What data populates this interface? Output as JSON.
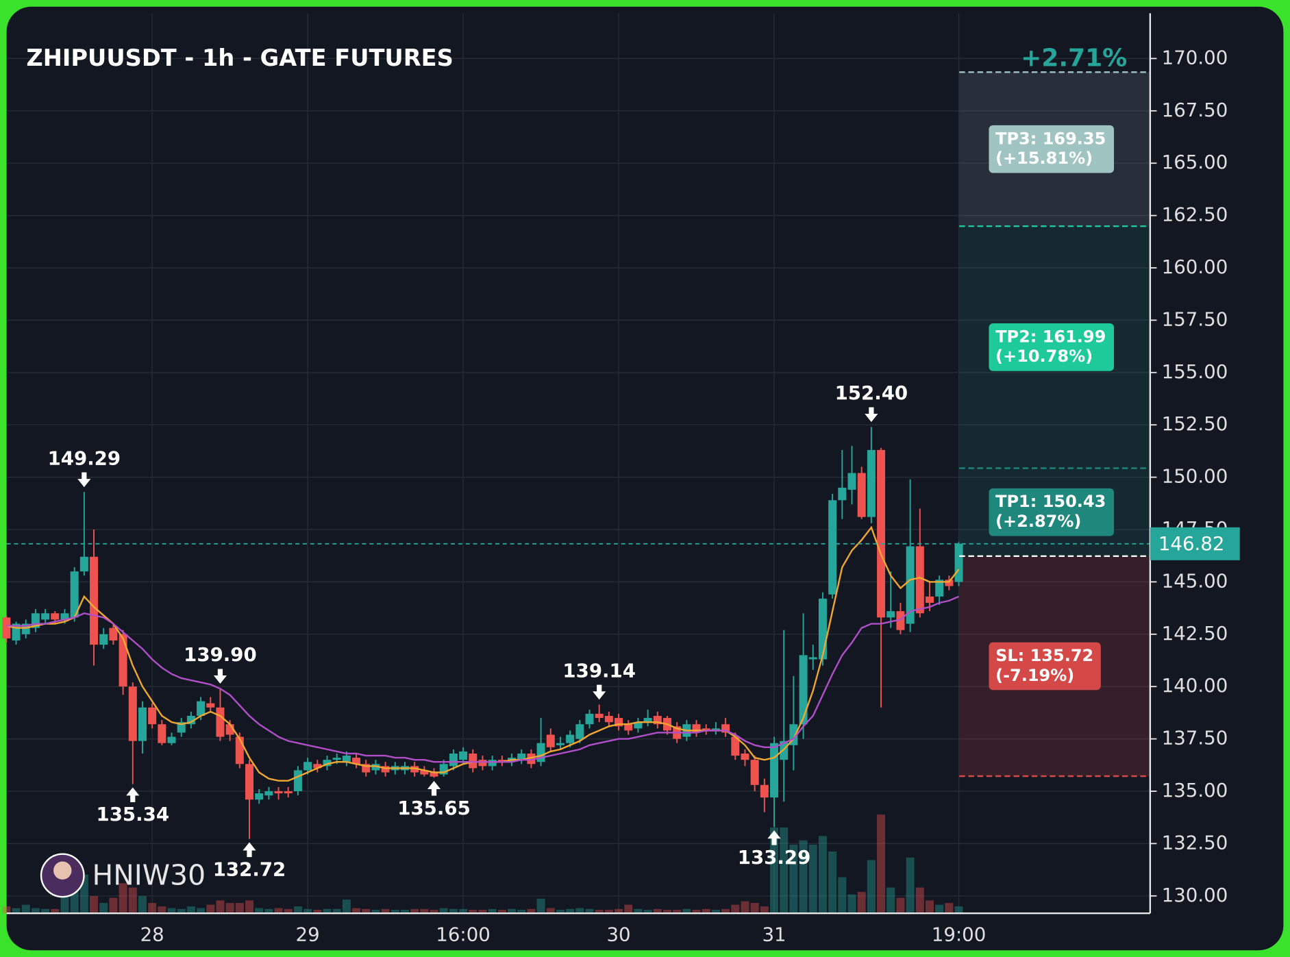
{
  "chart_data": {
    "type": "candlestick",
    "title": "ZHIPUUSDT - 1h - GATE FUTURES",
    "change": "+2.71%",
    "watermark": "HNIW30",
    "categories": [
      null,
      null,
      null,
      null,
      null,
      null,
      null,
      null,
      null,
      null,
      null,
      null,
      null,
      null,
      null,
      "28",
      null,
      null,
      null,
      null,
      null,
      null,
      null,
      null,
      null,
      null,
      null,
      null,
      null,
      null,
      null,
      "29",
      null,
      null,
      null,
      null,
      null,
      null,
      null,
      null,
      null,
      null,
      null,
      null,
      null,
      null,
      null,
      "16:00",
      null,
      null,
      null,
      null,
      null,
      null,
      null,
      null,
      null,
      null,
      null,
      null,
      null,
      null,
      null,
      "30",
      null,
      null,
      null,
      null,
      null,
      null,
      null,
      null,
      null,
      null,
      null,
      null,
      null,
      null,
      null,
      "31",
      null,
      null,
      null,
      null,
      null,
      null,
      null,
      null,
      null,
      null,
      null,
      null,
      null,
      null,
      null,
      null,
      null,
      null,
      "19:00"
    ],
    "open": [
      143.3,
      142.2,
      142.5,
      142.8,
      143.2,
      143.5,
      143.2,
      143.3,
      145.5,
      146.2,
      142.0,
      142.8,
      142.5,
      140.0,
      137.4,
      139.0,
      138.2,
      137.3,
      137.8,
      138.2,
      138.6,
      139.2,
      139.0,
      138.2,
      137.6,
      136.3,
      134.6,
      134.8,
      135.0,
      135.0,
      135.0,
      136.0,
      136.3,
      136.2,
      136.5,
      136.4,
      136.6,
      136.3,
      136.0,
      136.2,
      136.0,
      136.0,
      136.2,
      136.0,
      135.9,
      135.8,
      136.2,
      136.5,
      136.8,
      136.5,
      136.2,
      136.5,
      136.4,
      136.5,
      136.8,
      136.4,
      137.7,
      137.2,
      137.3,
      137.5,
      138.2,
      138.7,
      138.6,
      138.5,
      138.2,
      138.0,
      138.3,
      138.6,
      138.5,
      138.1,
      137.6,
      138.2,
      138.0,
      137.9,
      138.2,
      137.6,
      136.8,
      136.5,
      135.3,
      134.7,
      136.5,
      137.2,
      138.2,
      141.3,
      141.3,
      144.4,
      148.9,
      149.4,
      150.2,
      148.1,
      151.3,
      143.3,
      143.6,
      143.0,
      146.7,
      144.3,
      144.3,
      145.1,
      145.0
    ],
    "high": [
      143.4,
      143.1,
      143.2,
      143.7,
      143.7,
      143.6,
      143.7,
      145.7,
      149.29,
      147.5,
      142.8,
      143.0,
      142.7,
      140.2,
      139.3,
      139.2,
      138.4,
      137.8,
      138.5,
      138.8,
      139.5,
      139.5,
      139.9,
      138.4,
      137.8,
      136.5,
      135.1,
      135.2,
      135.2,
      135.2,
      136.2,
      136.6,
      136.5,
      136.7,
      136.8,
      136.9,
      136.8,
      136.5,
      136.5,
      136.4,
      136.4,
      136.4,
      136.4,
      136.2,
      136.1,
      136.5,
      137.0,
      137.1,
      137.0,
      136.7,
      136.7,
      136.7,
      136.8,
      137.0,
      137.0,
      138.5,
      138.0,
      137.6,
      137.9,
      138.4,
      138.9,
      139.14,
      138.8,
      138.7,
      138.4,
      138.5,
      138.9,
      138.8,
      138.6,
      138.3,
      138.4,
      138.4,
      138.2,
      138.3,
      138.5,
      137.8,
      137.0,
      136.7,
      135.6,
      137.6,
      142.7,
      140.5,
      143.5,
      142.0,
      144.5,
      149.2,
      151.3,
      151.5,
      150.5,
      152.4,
      151.4,
      145.5,
      144.0,
      149.9,
      148.5,
      145.0,
      145.3,
      145.3,
      146.9
    ],
    "low": [
      142.1,
      142.0,
      142.3,
      142.6,
      143.0,
      143.0,
      143.0,
      143.1,
      145.3,
      141.0,
      141.8,
      142.0,
      139.6,
      135.34,
      136.8,
      138.0,
      137.2,
      137.2,
      137.6,
      138.0,
      138.4,
      138.8,
      137.4,
      137.4,
      136.1,
      132.72,
      134.4,
      134.6,
      134.6,
      134.7,
      134.8,
      135.8,
      135.9,
      136.0,
      136.3,
      136.2,
      136.1,
      135.7,
      135.8,
      135.7,
      135.8,
      135.8,
      135.7,
      135.7,
      135.65,
      135.7,
      136.0,
      136.3,
      135.9,
      136.0,
      136.0,
      136.2,
      136.2,
      136.3,
      136.1,
      136.2,
      136.9,
      137.0,
      137.1,
      137.3,
      138.0,
      138.3,
      138.1,
      137.9,
      137.7,
      137.8,
      138.1,
      138.0,
      137.7,
      137.3,
      137.4,
      137.6,
      137.7,
      137.7,
      137.6,
      136.5,
      136.2,
      135.0,
      134.0,
      133.29,
      134.5,
      136.0,
      137.5,
      140.8,
      141.0,
      144.2,
      148.0,
      148.7,
      148.0,
      147.8,
      139.0,
      142.8,
      142.5,
      142.6,
      143.3,
      143.6,
      143.9,
      144.6,
      144.8
    ],
    "close": [
      142.3,
      143.0,
      143.0,
      143.5,
      143.5,
      143.2,
      143.5,
      145.5,
      146.2,
      142.0,
      142.5,
      142.2,
      140.0,
      137.4,
      139.0,
      138.2,
      137.3,
      137.6,
      138.3,
      138.6,
      139.3,
      139.0,
      137.6,
      137.7,
      136.3,
      134.6,
      134.9,
      135.0,
      134.9,
      134.9,
      136.0,
      136.4,
      136.1,
      136.5,
      136.6,
      136.7,
      136.3,
      135.9,
      136.3,
      135.9,
      136.2,
      136.2,
      135.9,
      135.8,
      135.7,
      136.3,
      136.8,
      136.9,
      136.1,
      136.2,
      136.5,
      136.4,
      136.6,
      136.8,
      136.3,
      137.3,
      137.1,
      137.3,
      137.7,
      138.2,
      138.7,
      138.5,
      138.3,
      138.1,
      137.9,
      138.3,
      138.5,
      138.2,
      137.9,
      137.5,
      138.2,
      137.8,
      137.9,
      138.0,
      137.8,
      136.7,
      136.5,
      135.3,
      134.7,
      137.3,
      137.4,
      138.2,
      141.5,
      141.4,
      144.2,
      148.9,
      149.5,
      150.2,
      148.1,
      151.3,
      143.3,
      143.6,
      142.7,
      146.7,
      143.5,
      144.0,
      145.1,
      144.8,
      146.82
    ],
    "volume": [
      8,
      6,
      10,
      6,
      5,
      5,
      30,
      35,
      45,
      20,
      12,
      18,
      35,
      30,
      20,
      12,
      8,
      6,
      5,
      8,
      6,
      10,
      15,
      12,
      12,
      15,
      6,
      5,
      6,
      5,
      8,
      5,
      4,
      5,
      5,
      16,
      6,
      5,
      4,
      5,
      4,
      4,
      5,
      5,
      4,
      6,
      5,
      5,
      4,
      4,
      5,
      4,
      5,
      4,
      5,
      17,
      6,
      4,
      5,
      6,
      5,
      4,
      4,
      5,
      10,
      5,
      4,
      5,
      4,
      4,
      5,
      4,
      5,
      4,
      5,
      10,
      14,
      12,
      8,
      100,
      100,
      80,
      85,
      80,
      90,
      72,
      42,
      22,
      25,
      62,
      115,
      30,
      18,
      65,
      30,
      15,
      10,
      12,
      8
    ],
    "up_color": "#26a69a",
    "down_color": "#ef5350",
    "ma": [
      {
        "color": "#f0a830",
        "values": [
          142.9,
          142.8,
          142.8,
          142.9,
          143.0,
          143.0,
          143.1,
          143.3,
          144.3,
          143.8,
          143.4,
          143.0,
          142.3,
          141.0,
          140.0,
          139.3,
          138.6,
          138.3,
          138.2,
          138.3,
          138.6,
          138.8,
          138.6,
          138.2,
          137.5,
          136.6,
          135.9,
          135.6,
          135.5,
          135.5,
          135.7,
          135.9,
          136.1,
          136.3,
          136.4,
          136.4,
          136.3,
          136.2,
          136.2,
          136.1,
          136.1,
          136.1,
          136.1,
          136.0,
          135.9,
          135.9,
          136.1,
          136.3,
          136.4,
          136.4,
          136.4,
          136.4,
          136.5,
          136.5,
          136.6,
          136.7,
          136.9,
          137.0,
          137.2,
          137.4,
          137.7,
          137.9,
          138.1,
          138.2,
          138.2,
          138.3,
          138.3,
          138.3,
          138.2,
          138.0,
          137.9,
          137.9,
          137.9,
          137.9,
          137.9,
          137.6,
          137.2,
          136.6,
          136.5,
          136.6,
          137.0,
          137.5,
          138.5,
          139.8,
          141.5,
          143.6,
          145.7,
          146.5,
          147.0,
          147.6,
          146.3,
          145.3,
          144.7,
          145.1,
          145.2,
          145.0,
          145.0,
          145.0,
          145.6
        ]
      },
      {
        "color": "#b04fc8",
        "values": [
          142.9,
          142.9,
          142.9,
          143.0,
          143.0,
          143.1,
          143.2,
          143.3,
          143.5,
          143.4,
          143.3,
          143.0,
          142.6,
          142.2,
          141.8,
          141.3,
          140.9,
          140.6,
          140.4,
          140.3,
          140.2,
          140.1,
          139.9,
          139.6,
          139.1,
          138.6,
          138.2,
          137.9,
          137.6,
          137.4,
          137.3,
          137.2,
          137.1,
          137.0,
          136.9,
          136.8,
          136.8,
          136.7,
          136.7,
          136.7,
          136.6,
          136.6,
          136.5,
          136.5,
          136.4,
          136.4,
          136.4,
          136.4,
          136.4,
          136.4,
          136.4,
          136.4,
          136.4,
          136.5,
          136.5,
          136.6,
          136.7,
          136.8,
          136.9,
          137.0,
          137.2,
          137.3,
          137.4,
          137.5,
          137.5,
          137.6,
          137.7,
          137.8,
          137.8,
          137.8,
          137.8,
          137.8,
          137.9,
          137.9,
          137.9,
          137.7,
          137.4,
          137.2,
          137.1,
          137.1,
          137.3,
          137.5,
          138.1,
          138.6,
          139.6,
          140.6,
          141.5,
          142.1,
          142.8,
          143.0,
          143.0,
          143.1,
          143.2,
          143.6,
          143.7,
          143.8,
          144.0,
          144.1,
          144.3
        ]
      }
    ],
    "ylim": [
      129.17,
      172.16
    ],
    "yticks": [
      {
        "value": 130,
        "label": "130.00"
      },
      {
        "value": 132.5,
        "label": "132.50"
      },
      {
        "value": 135,
        "label": "135.00"
      },
      {
        "value": 137.5,
        "label": "137.50"
      },
      {
        "value": 140,
        "label": "140.00"
      },
      {
        "value": 142.5,
        "label": "142.50"
      },
      {
        "value": 145,
        "label": "145.00"
      },
      {
        "value": 147.5,
        "label": "147.50"
      },
      {
        "value": 150,
        "label": "150.00"
      },
      {
        "value": 152.5,
        "label": "152.50"
      },
      {
        "value": 155,
        "label": "155.00"
      },
      {
        "value": 157.5,
        "label": "157.50"
      },
      {
        "value": 160,
        "label": "160.00"
      },
      {
        "value": 162.5,
        "label": "162.50"
      },
      {
        "value": 165,
        "label": "165.00"
      },
      {
        "value": 167.5,
        "label": "167.50"
      },
      {
        "value": 170,
        "label": "170.00"
      }
    ],
    "grid": true,
    "last_price": 146.82,
    "entry": 146.23,
    "levels": [
      {
        "value": 169.35,
        "label": "TP3: 169.35",
        "change": "(+15.81%)",
        "color": "#9fc4c1"
      },
      {
        "value": 161.99,
        "label": "TP2: 161.99",
        "change": "(+10.78%)",
        "color": "#1ec99a"
      },
      {
        "value": 150.43,
        "label": "TP1: 150.43",
        "change": "(+2.87%)",
        "color": "#20877d"
      },
      {
        "value": 135.72,
        "label": "SL: 135.72",
        "change": "(-7.19%)",
        "color": "#d44848"
      }
    ],
    "annotations": [
      {
        "value": 149.29,
        "index": 8
      },
      {
        "value": 135.34,
        "index": 13
      },
      {
        "value": 139.9,
        "label": "139.90",
        "index": 22
      },
      {
        "value": 132.72,
        "index": 25
      },
      {
        "value": 135.65,
        "index": 44
      },
      {
        "value": 139.14,
        "index": 61
      },
      {
        "value": 133.29,
        "index": 79
      },
      {
        "value": 152.4,
        "label": "152.40",
        "index": 89
      }
    ]
  }
}
